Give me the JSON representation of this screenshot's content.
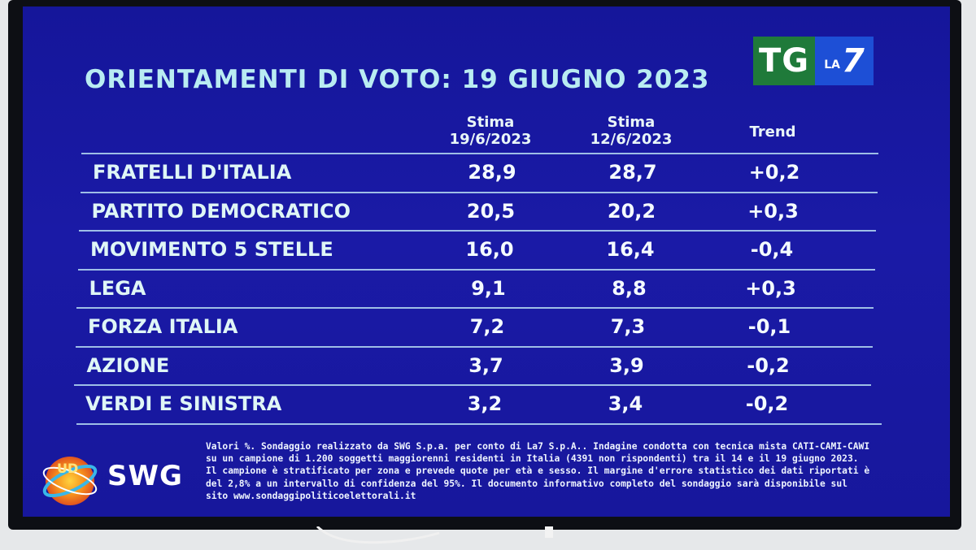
{
  "title": "ORIENTAMENTI DI VOTO: 19 GIUGNO 2023",
  "broadcaster": {
    "tg": "TG",
    "la": "LA",
    "seven": "7"
  },
  "columns": {
    "c1_line1": "Stima",
    "c1_line2": "19/6/2023",
    "c2_line1": "Stima",
    "c2_line2": "12/6/2023",
    "c3": "Trend"
  },
  "chart_data": {
    "type": "table",
    "title": "ORIENTAMENTI DI VOTO: 19 GIUGNO 2023",
    "headers": [
      "",
      "Stima 19/6/2023",
      "Stima 12/6/2023",
      "Trend"
    ],
    "rows": [
      {
        "party": "FRATELLI D'ITALIA",
        "v1": "28,9",
        "v2": "28,7",
        "trend": "+0,2"
      },
      {
        "party": "PARTITO DEMOCRATICO",
        "v1": "20,5",
        "v2": "20,2",
        "trend": "+0,3"
      },
      {
        "party": "MOVIMENTO 5 STELLE",
        "v1": "16,0",
        "v2": "16,4",
        "trend": "-0,4"
      },
      {
        "party": "LEGA",
        "v1": "9,1",
        "v2": "8,8",
        "trend": "+0,3"
      },
      {
        "party": "FORZA ITALIA",
        "v1": "7,2",
        "v2": "7,3",
        "trend": "-0,1"
      },
      {
        "party": "AZIONE",
        "v1": "3,7",
        "v2": "3,9",
        "trend": "-0,2"
      },
      {
        "party": "VERDI E SINISTRA",
        "v1": "3,2",
        "v2": "3,4",
        "trend": "-0,2"
      }
    ]
  },
  "pollster": {
    "name": "SWG",
    "mark": "UD"
  },
  "footnote": "Valori %. Sondaggio realizzato da SWG S.p.a. per conto di La7 S.p.A.. Indagine condotta con tecnica mista CATI-CAMI-CAWI su un campione di 1.200 soggetti maggiorenni residenti in Italia (4391 non rispondenti) tra il 14 e il 19 giugno 2023. Il campione è stratificato per zona e prevede quote per età e sesso. Il margine d'errore statistico dei dati riportati è del 2,8% a un intervallo di confidenza del 95%. Il documento informativo completo del sondaggio sarà disponibile sul sito www.sondaggipoliticoelettorali.it",
  "colors": {
    "background": "#1a1aa6",
    "title": "#b9ecf2",
    "text": "#f4fbff",
    "rule": "#b6dcf2"
  }
}
